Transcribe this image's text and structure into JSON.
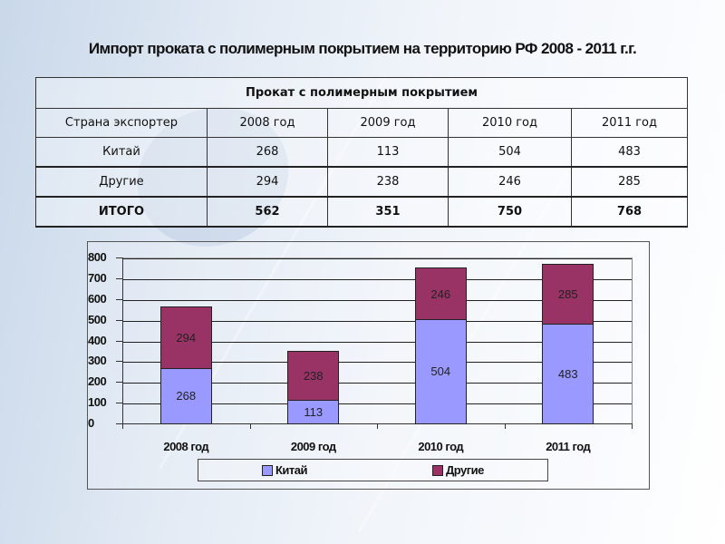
{
  "title": "Импорт проката с полимерным покрытием на территорию РФ 2008 - 2011 г.г.",
  "table": {
    "caption": "Прокат с полимерным покрытием",
    "header": [
      "Страна экспортер",
      "2008 год",
      "2009 год",
      "2010 год",
      "2011 год"
    ],
    "rows": [
      {
        "label": "Китай",
        "values": [
          "268",
          "113",
          "504",
          "483"
        ]
      },
      {
        "label": "Другие",
        "values": [
          "294",
          "238",
          "246",
          "285"
        ]
      },
      {
        "label": "ИТОГО",
        "values": [
          "562",
          "351",
          "750",
          "768"
        ]
      }
    ]
  },
  "colors": {
    "china": "#9999ff",
    "other": "#993366"
  },
  "chart": {
    "yticks": [
      "800",
      "700",
      "600",
      "500",
      "400",
      "300",
      "200",
      "100",
      "0"
    ],
    "xlabels": [
      "2008 год",
      "2009 год",
      "2010 год",
      "2011 год"
    ],
    "bars": [
      {
        "china": "268",
        "other": "294"
      },
      {
        "china": "113",
        "other": "238"
      },
      {
        "china": "504",
        "other": "246"
      },
      {
        "china": "483",
        "other": "285"
      }
    ],
    "legend": [
      "Китай",
      "Другие"
    ]
  },
  "chart_data": {
    "type": "bar",
    "stacked": true,
    "title": "Импорт проката с полимерным покрытием на территорию РФ 2008 - 2011 г.г.",
    "categories": [
      "2008 год",
      "2009 год",
      "2010 год",
      "2011 год"
    ],
    "series": [
      {
        "name": "Китай",
        "values": [
          268,
          113,
          504,
          483
        ],
        "color": "#9999ff"
      },
      {
        "name": "Другие",
        "values": [
          294,
          238,
          246,
          285
        ],
        "color": "#993366"
      }
    ],
    "totals": [
      562,
      351,
      750,
      768
    ],
    "xlabel": "",
    "ylabel": "",
    "ylim": [
      0,
      800
    ],
    "yticks": [
      0,
      100,
      200,
      300,
      400,
      500,
      600,
      700,
      800
    ],
    "grid": true,
    "data_labels": true,
    "legend_position": "bottom"
  }
}
